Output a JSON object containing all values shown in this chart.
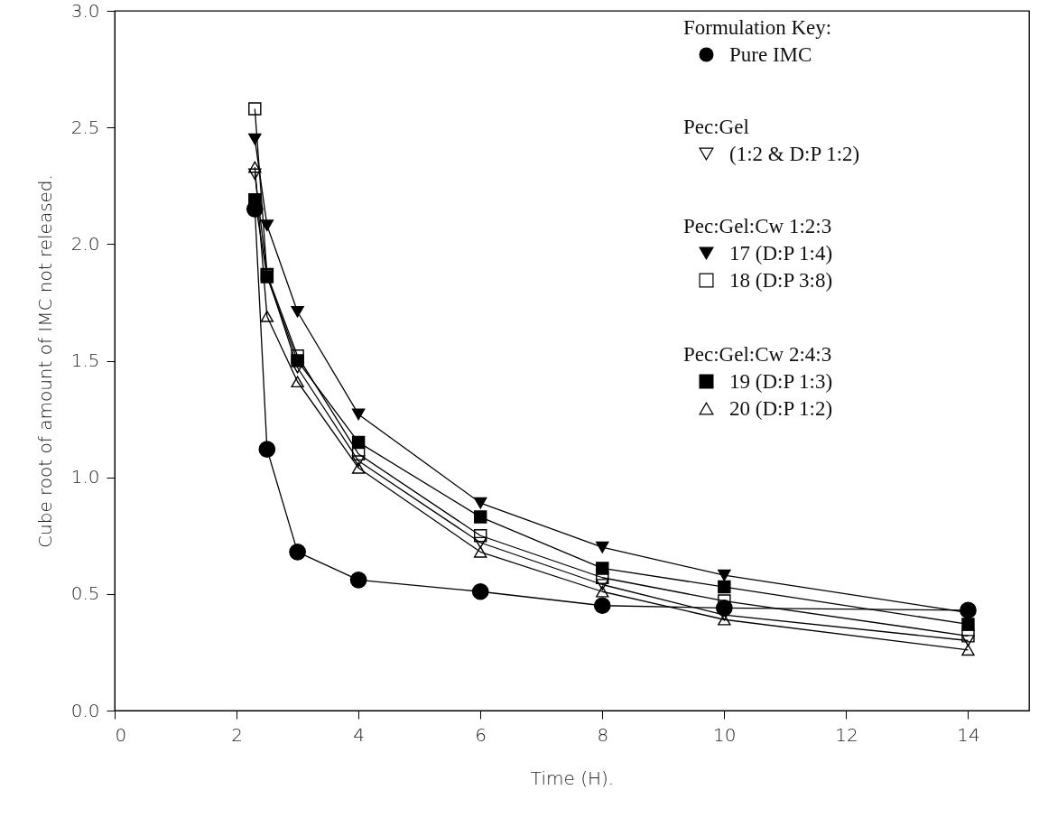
{
  "chart_data": {
    "type": "line",
    "xlabel": "Time (H).",
    "ylabel": "Cube root of amount of IMC not released.",
    "legend_title": "Formulation Key:",
    "annotations": [
      "Pec:Gel",
      "Pec:Gel:Cw 1:2:3",
      "Pec:Gel:Cw 2:4:3"
    ],
    "x": [
      2.3,
      2.5,
      3,
      4,
      6,
      8,
      10,
      14
    ],
    "series": [
      {
        "name": "Pure IMC",
        "color": "#000000",
        "marker": "circle",
        "values": [
          2.15,
          1.12,
          0.68,
          0.56,
          0.51,
          0.45,
          0.44,
          0.43
        ]
      },
      {
        "name": "(1:2 & D:P 1:2)",
        "color": "#000000",
        "marker": "triangle-down-open",
        "values": [
          2.3,
          1.87,
          1.47,
          1.07,
          0.72,
          0.54,
          0.41,
          0.3
        ]
      },
      {
        "name": "17 (D:P 1:4)",
        "color": "#000000",
        "marker": "triangle-down",
        "values": [
          2.45,
          2.08,
          1.71,
          1.27,
          0.89,
          0.7,
          0.58,
          0.42
        ]
      },
      {
        "name": "18 (D:P 3:8)",
        "color": "#000000",
        "marker": "square-open",
        "values": [
          2.58,
          1.87,
          1.52,
          1.1,
          0.75,
          0.57,
          0.47,
          0.32
        ]
      },
      {
        "name": "19 (D:P 1:3)",
        "color": "#000000",
        "marker": "square",
        "values": [
          2.19,
          1.86,
          1.5,
          1.15,
          0.83,
          0.61,
          0.53,
          0.37
        ]
      },
      {
        "name": "20 (D:P 1:2)",
        "color": "#000000",
        "marker": "triangle-open",
        "values": [
          2.33,
          1.69,
          1.41,
          1.04,
          0.68,
          0.51,
          0.39,
          0.26
        ]
      }
    ],
    "xlim": [
      0,
      15
    ],
    "xticks": [
      0,
      2,
      4,
      6,
      8,
      10,
      12,
      14
    ],
    "ylim": [
      0,
      3
    ],
    "yticks": [
      {
        "value": 0,
        "label": "0.0"
      },
      0.5,
      {
        "value": 1,
        "label": "1.0"
      },
      1.5,
      {
        "value": 2,
        "label": "2.0"
      },
      2.5,
      {
        "value": 3,
        "label": "3.0"
      }
    ],
    "grid": false,
    "legend": "top right",
    "line_style": "solid"
  }
}
